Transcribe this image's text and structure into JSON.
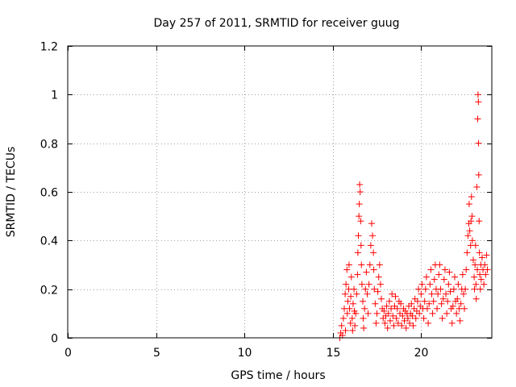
{
  "chart_data": {
    "type": "scatter",
    "title": "Day 257 of 2011, SRMTID for receiver guug",
    "xlabel": "GPS time / hours",
    "ylabel": "SRMTID / TECUs",
    "xlim": [
      0,
      24
    ],
    "ylim": [
      0,
      1.2
    ],
    "xticks": [
      0,
      5,
      10,
      15,
      20
    ],
    "xtick_labels": [
      "0",
      "5",
      "10",
      "15",
      "20"
    ],
    "yticks": [
      0,
      0.2,
      0.4,
      0.6,
      0.8,
      1.0,
      1.2
    ],
    "ytick_labels": [
      "0",
      "0.2",
      "0.4",
      "0.6",
      "0.8",
      "1",
      "1.2"
    ],
    "grid": true,
    "marker": "+",
    "color": "#ff0000",
    "series": [
      {
        "name": "SRMTID",
        "points": [
          [
            15.4,
            0.0
          ],
          [
            15.45,
            0.02
          ],
          [
            15.5,
            0.05
          ],
          [
            15.55,
            0.01
          ],
          [
            15.6,
            0.08
          ],
          [
            15.65,
            0.12
          ],
          [
            15.7,
            0.18
          ],
          [
            15.72,
            0.03
          ],
          [
            15.75,
            0.22
          ],
          [
            15.8,
            0.28
          ],
          [
            15.82,
            0.1
          ],
          [
            15.85,
            0.15
          ],
          [
            15.9,
            0.2
          ],
          [
            15.92,
            0.3
          ],
          [
            15.95,
            0.12
          ],
          [
            16.0,
            0.06
          ],
          [
            16.02,
            0.17
          ],
          [
            16.05,
            0.25
          ],
          [
            16.1,
            0.08
          ],
          [
            16.12,
            0.03
          ],
          [
            16.15,
            0.14
          ],
          [
            16.2,
            0.2
          ],
          [
            16.22,
            0.11
          ],
          [
            16.25,
            0.05
          ],
          [
            16.3,
            0.1
          ],
          [
            16.35,
            0.18
          ],
          [
            16.4,
            0.26
          ],
          [
            16.42,
            0.35
          ],
          [
            16.45,
            0.42
          ],
          [
            16.48,
            0.5
          ],
          [
            16.5,
            0.55
          ],
          [
            16.52,
            0.63
          ],
          [
            16.55,
            0.6
          ],
          [
            16.58,
            0.48
          ],
          [
            16.6,
            0.38
          ],
          [
            16.62,
            0.3
          ],
          [
            16.65,
            0.22
          ],
          [
            16.7,
            0.15
          ],
          [
            16.72,
            0.08
          ],
          [
            16.75,
            0.04
          ],
          [
            16.8,
            0.12
          ],
          [
            16.85,
            0.2
          ],
          [
            16.9,
            0.27
          ],
          [
            16.95,
            0.18
          ],
          [
            17.0,
            0.1
          ],
          [
            17.05,
            0.22
          ],
          [
            17.1,
            0.3
          ],
          [
            17.15,
            0.38
          ],
          [
            17.2,
            0.47
          ],
          [
            17.25,
            0.42
          ],
          [
            17.3,
            0.35
          ],
          [
            17.32,
            0.28
          ],
          [
            17.35,
            0.2
          ],
          [
            17.4,
            0.14
          ],
          [
            17.45,
            0.06
          ],
          [
            17.5,
            0.1
          ],
          [
            17.55,
            0.19
          ],
          [
            17.6,
            0.25
          ],
          [
            17.65,
            0.3
          ],
          [
            17.7,
            0.22
          ],
          [
            17.75,
            0.16
          ],
          [
            17.8,
            0.12
          ],
          [
            17.85,
            0.08
          ],
          [
            17.9,
            0.11
          ],
          [
            17.95,
            0.06
          ],
          [
            18.0,
            0.09
          ],
          [
            18.05,
            0.13
          ],
          [
            18.1,
            0.04
          ],
          [
            18.15,
            0.1
          ],
          [
            18.2,
            0.15
          ],
          [
            18.25,
            0.07
          ],
          [
            18.3,
            0.12
          ],
          [
            18.35,
            0.18
          ],
          [
            18.4,
            0.09
          ],
          [
            18.45,
            0.05
          ],
          [
            18.5,
            0.13
          ],
          [
            18.55,
            0.17
          ],
          [
            18.6,
            0.08
          ],
          [
            18.65,
            0.12
          ],
          [
            18.7,
            0.06
          ],
          [
            18.75,
            0.15
          ],
          [
            18.8,
            0.1
          ],
          [
            18.85,
            0.14
          ],
          [
            18.9,
            0.05
          ],
          [
            18.95,
            0.09
          ],
          [
            19.0,
            0.12
          ],
          [
            19.05,
            0.07
          ],
          [
            19.1,
            0.11
          ],
          [
            19.15,
            0.04
          ],
          [
            19.2,
            0.1
          ],
          [
            19.25,
            0.08
          ],
          [
            19.3,
            0.13
          ],
          [
            19.35,
            0.06
          ],
          [
            19.4,
            0.1
          ],
          [
            19.45,
            0.14
          ],
          [
            19.5,
            0.09
          ],
          [
            19.55,
            0.05
          ],
          [
            19.6,
            0.12
          ],
          [
            19.65,
            0.16
          ],
          [
            19.7,
            0.08
          ],
          [
            19.75,
            0.11
          ],
          [
            19.8,
            0.15
          ],
          [
            19.85,
            0.2
          ],
          [
            19.9,
            0.1
          ],
          [
            19.95,
            0.13
          ],
          [
            20.0,
            0.18
          ],
          [
            20.05,
            0.22
          ],
          [
            20.1,
            0.12
          ],
          [
            20.15,
            0.08
          ],
          [
            20.2,
            0.15
          ],
          [
            20.25,
            0.2
          ],
          [
            20.3,
            0.25
          ],
          [
            20.35,
            0.12
          ],
          [
            20.4,
            0.06
          ],
          [
            20.45,
            0.14
          ],
          [
            20.5,
            0.22
          ],
          [
            20.55,
            0.28
          ],
          [
            20.6,
            0.18
          ],
          [
            20.65,
            0.1
          ],
          [
            20.7,
            0.15
          ],
          [
            20.75,
            0.24
          ],
          [
            20.8,
            0.3
          ],
          [
            20.85,
            0.2
          ],
          [
            20.9,
            0.12
          ],
          [
            20.95,
            0.18
          ],
          [
            21.0,
            0.26
          ],
          [
            21.05,
            0.3
          ],
          [
            21.1,
            0.2
          ],
          [
            21.15,
            0.14
          ],
          [
            21.2,
            0.08
          ],
          [
            21.25,
            0.16
          ],
          [
            21.3,
            0.24
          ],
          [
            21.35,
            0.28
          ],
          [
            21.4,
            0.18
          ],
          [
            21.45,
            0.1
          ],
          [
            21.5,
            0.15
          ],
          [
            21.55,
            0.22
          ],
          [
            21.6,
            0.27
          ],
          [
            21.65,
            0.19
          ],
          [
            21.7,
            0.12
          ],
          [
            21.75,
            0.06
          ],
          [
            21.8,
            0.13
          ],
          [
            21.85,
            0.2
          ],
          [
            21.9,
            0.25
          ],
          [
            21.95,
            0.15
          ],
          [
            22.0,
            0.1
          ],
          [
            22.05,
            0.16
          ],
          [
            22.1,
            0.22
          ],
          [
            22.15,
            0.12
          ],
          [
            22.2,
            0.07
          ],
          [
            22.25,
            0.14
          ],
          [
            22.3,
            0.2
          ],
          [
            22.35,
            0.26
          ],
          [
            22.4,
            0.18
          ],
          [
            22.45,
            0.12
          ],
          [
            22.5,
            0.2
          ],
          [
            22.55,
            0.28
          ],
          [
            22.6,
            0.35
          ],
          [
            22.65,
            0.42
          ],
          [
            22.7,
            0.47
          ],
          [
            22.72,
            0.55
          ],
          [
            22.75,
            0.44
          ],
          [
            22.8,
            0.38
          ],
          [
            22.82,
            0.48
          ],
          [
            22.85,
            0.58
          ],
          [
            22.88,
            0.5
          ],
          [
            22.9,
            0.4
          ],
          [
            22.95,
            0.32
          ],
          [
            23.0,
            0.25
          ],
          [
            23.02,
            0.2
          ],
          [
            23.05,
            0.3
          ],
          [
            23.08,
            0.38
          ],
          [
            23.1,
            0.22
          ],
          [
            23.12,
            0.16
          ],
          [
            23.15,
            0.62
          ],
          [
            23.18,
            0.28
          ],
          [
            23.2,
            0.9
          ],
          [
            23.22,
            1.0
          ],
          [
            23.24,
            0.97
          ],
          [
            23.25,
            0.8
          ],
          [
            23.26,
            0.67
          ],
          [
            23.28,
            0.48
          ],
          [
            23.3,
            0.35
          ],
          [
            23.32,
            0.26
          ],
          [
            23.35,
            0.2
          ],
          [
            23.38,
            0.3
          ],
          [
            23.4,
            0.24
          ],
          [
            23.45,
            0.33
          ],
          [
            23.5,
            0.28
          ],
          [
            23.55,
            0.22
          ],
          [
            23.6,
            0.3
          ],
          [
            23.65,
            0.26
          ],
          [
            23.7,
            0.34
          ],
          [
            23.75,
            0.28
          ]
        ]
      }
    ]
  }
}
